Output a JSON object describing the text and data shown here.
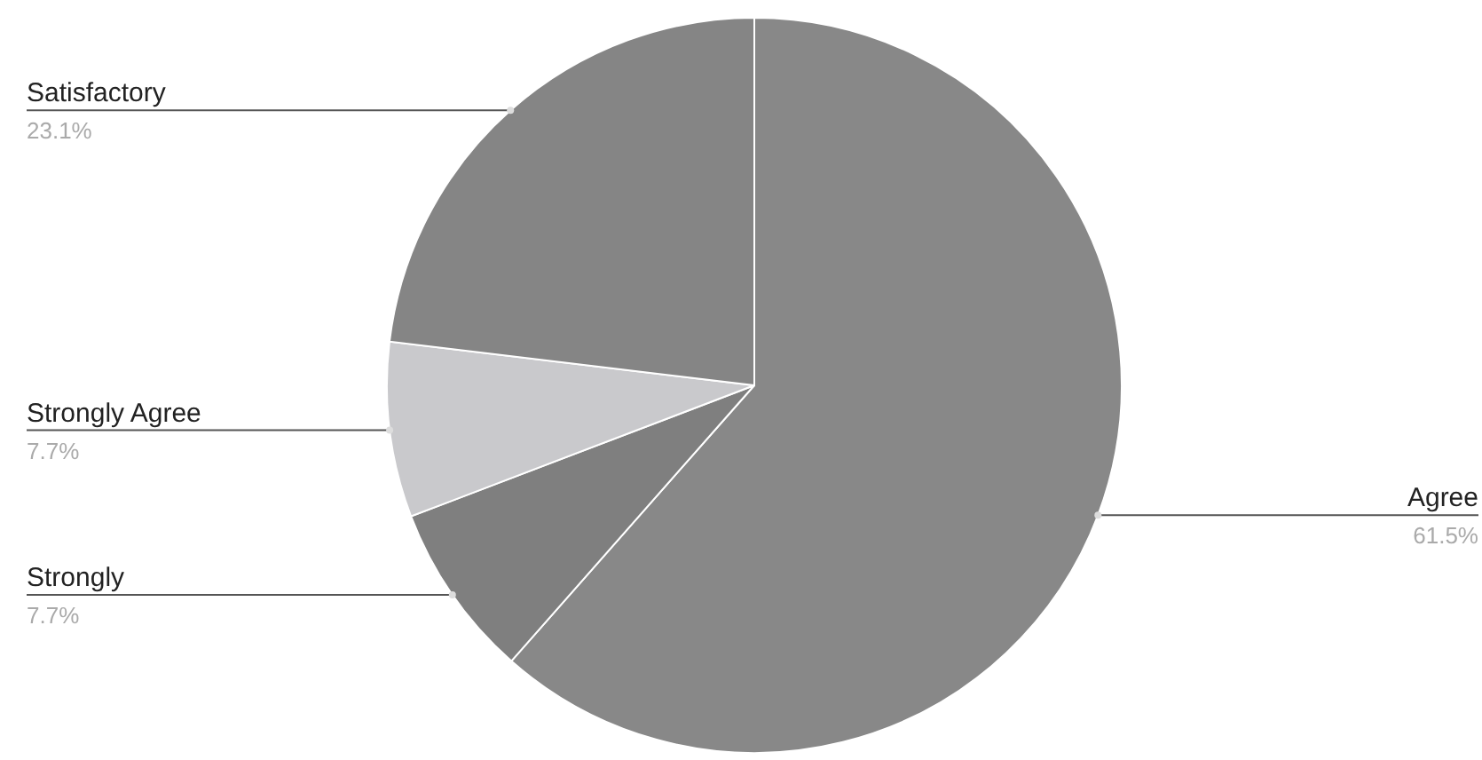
{
  "chart_data": {
    "type": "pie",
    "categories": [
      "Agree",
      "Strongly",
      "Strongly Agree",
      "Satisfactory"
    ],
    "values": [
      61.5,
      7.7,
      7.7,
      23.1
    ],
    "colors": [
      "#888888",
      "#7f7f7f",
      "#c9c9cc",
      "#858585"
    ],
    "value_labels": [
      "61.5%",
      "7.7%",
      "7.7%",
      "23.1%"
    ],
    "legend": false
  }
}
